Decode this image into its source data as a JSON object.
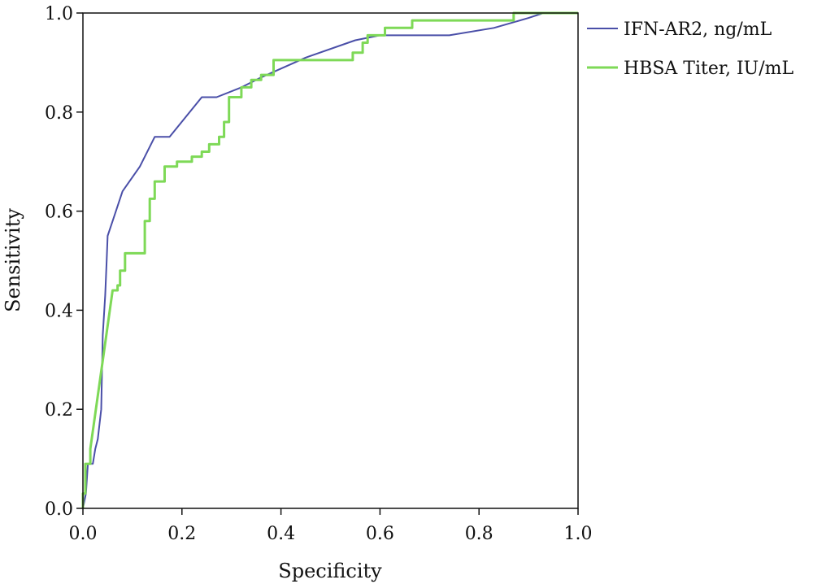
{
  "chart_data": {
    "type": "line",
    "title": "",
    "xlabel": "Specificity",
    "ylabel": "Sensitivity",
    "xlim": [
      0,
      1
    ],
    "ylim": [
      0,
      1
    ],
    "xticks": [
      "0.0",
      "0.2",
      "0.4",
      "0.6",
      "0.8",
      "1.0"
    ],
    "yticks": [
      "0.0",
      "0.2",
      "0.4",
      "0.6",
      "0.8",
      "1.0"
    ],
    "grid": false,
    "legend_position": "right",
    "series": [
      {
        "name": "IFN-AR2, ng/mL",
        "color": "#4a4fa8",
        "step": false,
        "points": [
          [
            0,
            0
          ],
          [
            0.006,
            0.03
          ],
          [
            0.01,
            0.09
          ],
          [
            0.02,
            0.09
          ],
          [
            0.025,
            0.12
          ],
          [
            0.03,
            0.14
          ],
          [
            0.037,
            0.2
          ],
          [
            0.04,
            0.35
          ],
          [
            0.045,
            0.43
          ],
          [
            0.048,
            0.5
          ],
          [
            0.05,
            0.55
          ],
          [
            0.06,
            0.58
          ],
          [
            0.08,
            0.64
          ],
          [
            0.115,
            0.69
          ],
          [
            0.145,
            0.75
          ],
          [
            0.175,
            0.75
          ],
          [
            0.24,
            0.83
          ],
          [
            0.27,
            0.83
          ],
          [
            0.32,
            0.85
          ],
          [
            0.36,
            0.87
          ],
          [
            0.45,
            0.91
          ],
          [
            0.55,
            0.945
          ],
          [
            0.6,
            0.955
          ],
          [
            0.74,
            0.955
          ],
          [
            0.83,
            0.97
          ],
          [
            0.9,
            0.99
          ],
          [
            0.93,
            1.0
          ],
          [
            1.0,
            1.0
          ]
        ]
      },
      {
        "name": "HBSA Titer, IU/mL",
        "color": "#7ed957",
        "step": true,
        "points": [
          [
            0,
            0
          ],
          [
            0,
            0.03
          ],
          [
            0.005,
            0.03
          ],
          [
            0.005,
            0.09
          ],
          [
            0.015,
            0.09
          ],
          [
            0.015,
            0.12
          ],
          [
            0.06,
            0.44
          ],
          [
            0.07,
            0.44
          ],
          [
            0.07,
            0.45
          ],
          [
            0.075,
            0.45
          ],
          [
            0.075,
            0.48
          ],
          [
            0.085,
            0.48
          ],
          [
            0.085,
            0.515
          ],
          [
            0.125,
            0.515
          ],
          [
            0.125,
            0.58
          ],
          [
            0.135,
            0.58
          ],
          [
            0.135,
            0.625
          ],
          [
            0.145,
            0.625
          ],
          [
            0.145,
            0.66
          ],
          [
            0.165,
            0.66
          ],
          [
            0.165,
            0.69
          ],
          [
            0.19,
            0.69
          ],
          [
            0.19,
            0.7
          ],
          [
            0.22,
            0.7
          ],
          [
            0.22,
            0.71
          ],
          [
            0.24,
            0.71
          ],
          [
            0.24,
            0.72
          ],
          [
            0.255,
            0.72
          ],
          [
            0.255,
            0.735
          ],
          [
            0.275,
            0.735
          ],
          [
            0.275,
            0.75
          ],
          [
            0.285,
            0.75
          ],
          [
            0.285,
            0.78
          ],
          [
            0.295,
            0.78
          ],
          [
            0.295,
            0.83
          ],
          [
            0.32,
            0.83
          ],
          [
            0.32,
            0.85
          ],
          [
            0.34,
            0.85
          ],
          [
            0.34,
            0.865
          ],
          [
            0.36,
            0.865
          ],
          [
            0.36,
            0.875
          ],
          [
            0.385,
            0.875
          ],
          [
            0.385,
            0.905
          ],
          [
            0.545,
            0.905
          ],
          [
            0.545,
            0.92
          ],
          [
            0.565,
            0.92
          ],
          [
            0.565,
            0.94
          ],
          [
            0.575,
            0.94
          ],
          [
            0.575,
            0.955
          ],
          [
            0.61,
            0.955
          ],
          [
            0.61,
            0.97
          ],
          [
            0.665,
            0.97
          ],
          [
            0.665,
            0.985
          ],
          [
            0.87,
            0.985
          ],
          [
            0.87,
            1.0
          ],
          [
            1.0,
            1.0
          ]
        ]
      }
    ]
  }
}
